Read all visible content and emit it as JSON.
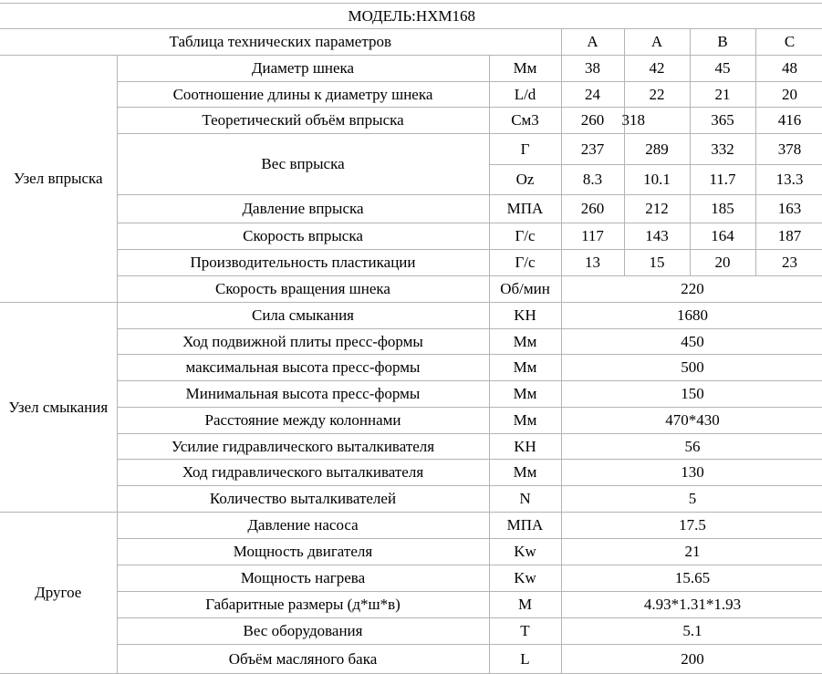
{
  "title": "МОДЕЛЬ:HXM168",
  "header": {
    "label": "Таблица технических параметров",
    "columns": [
      "A",
      "A",
      "B",
      "C"
    ]
  },
  "groups": [
    {
      "name": "Узел впрыска",
      "rows": [
        {
          "param": "Диаметр шнека",
          "unit": "Мм",
          "values": [
            "38",
            "42",
            "45",
            "48"
          ]
        },
        {
          "param": "Соотношение длины к диаметру шнека",
          "unit": "L/d",
          "values": [
            "24",
            "22",
            "21",
            "20"
          ]
        },
        {
          "param": "Теоретический объём впрыска",
          "unit": "См3",
          "values": [
            "260",
            "318",
            "365",
            "416"
          ]
        },
        {
          "param": "Вес впрыска",
          "unit": "Г",
          "values": [
            "237",
            "289",
            "332",
            "378"
          ],
          "sub": {
            "unit": "Oz",
            "values": [
              "8.3",
              "10.1",
              "11.7",
              "13.3"
            ]
          }
        },
        {
          "param": "Давление впрыска",
          "unit": "МПА",
          "values": [
            "260",
            "212",
            "185",
            "163"
          ]
        },
        {
          "param": "Скорость впрыска",
          "unit": "Г/с",
          "values": [
            "117",
            "143",
            "164",
            "187"
          ]
        },
        {
          "param": "Производительность пластикации",
          "unit": "Г/с",
          "values": [
            "13",
            "15",
            "20",
            "23"
          ]
        },
        {
          "param": "Скорость вращения шнека",
          "unit": "Об/мин",
          "value": "220"
        }
      ]
    },
    {
      "name": "Узел смыкания",
      "rows": [
        {
          "param": "Сила смыкания",
          "unit": "KH",
          "value": "1680"
        },
        {
          "param": "Ход подвижной плиты пресс-формы",
          "unit": "Мм",
          "value": "450"
        },
        {
          "param": "максимальная высота пресс-формы",
          "unit": "Мм",
          "value": "500"
        },
        {
          "param": "Минимальная высота пресс-формы",
          "unit": "Мм",
          "value": "150"
        },
        {
          "param": "Расстояние между колоннами",
          "unit": "Мм",
          "value": "470*430"
        },
        {
          "param": "Усилие гидравлического выталкивателя",
          "unit": "KH",
          "value": "56"
        },
        {
          "param": "Ход гидравлического выталкивателя",
          "unit": "Мм",
          "value": "130"
        },
        {
          "param": "Количество выталкивателей",
          "unit": "N",
          "value": "5"
        }
      ]
    },
    {
      "name": "Другое",
      "rows": [
        {
          "param": "Давление насоса",
          "unit": "МПА",
          "value": "17.5"
        },
        {
          "param": "Мощность двигателя",
          "unit": "Kw",
          "value": "21"
        },
        {
          "param": "Мощность нагрева",
          "unit": "Kw",
          "value": "15.65"
        },
        {
          "param": "Габаритные размеры (д*ш*в)",
          "unit": "M",
          "value": "4.93*1.31*1.93"
        },
        {
          "param": "Вес оборудования",
          "unit": "T",
          "value": "5.1"
        },
        {
          "param": "Объём масляного бака",
          "unit": "L",
          "value": "200"
        }
      ]
    }
  ]
}
